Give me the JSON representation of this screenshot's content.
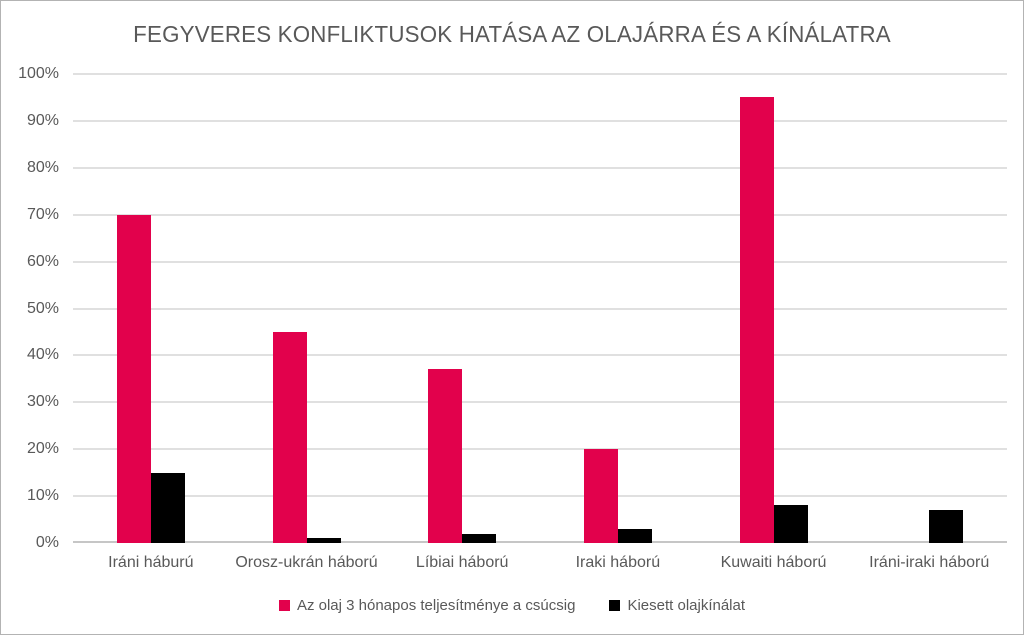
{
  "chart_data": {
    "type": "bar",
    "title": "FEGYVERES KONFLIKTUSOK HATÁSA AZ OLAJÁRRA ÉS A KÍNÁLATRA",
    "categories": [
      "Iráni háburú",
      "Orosz-ukrán háború",
      "Líbiai háború",
      "Iraki háború",
      "Kuwaiti háború",
      "Iráni-iraki háború"
    ],
    "series": [
      {
        "name": "Az olaj 3 hónapos teljesítménye a csúcsig",
        "color": "#e2014c",
        "values": [
          70,
          45,
          37,
          20,
          95,
          null
        ]
      },
      {
        "name": "Kiesett olajkínálat",
        "color": "#000000",
        "values": [
          15,
          1,
          2,
          3,
          8,
          7
        ]
      }
    ],
    "xlabel": "",
    "ylabel": "",
    "ylim": [
      0,
      100
    ],
    "ytick_step": 10,
    "ytick_suffix": "%",
    "yticks": [
      "0%",
      "10%",
      "20%",
      "30%",
      "40%",
      "50%",
      "60%",
      "70%",
      "80%",
      "90%",
      "100%"
    ],
    "grid": true,
    "legend_position": "bottom"
  },
  "colors": {
    "title_text": "#595959",
    "axis_text": "#595959",
    "gridline": "#e0e0e0",
    "baseline": "#c6c6c6",
    "page_border": "#b3b3b3"
  }
}
